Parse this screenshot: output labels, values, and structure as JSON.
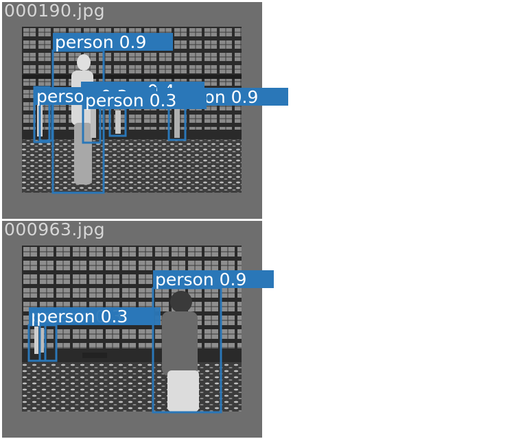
{
  "colors": {
    "box": "#2a77b8",
    "label_bg": "#2a77b8",
    "label_text": "#ffffff",
    "panel_bg": "#6e6e6e",
    "filename_text": "#d7d7d7"
  },
  "panels": [
    {
      "filename": "000190.jpg",
      "detections": [
        {
          "label": "person",
          "score": "0.9"
        },
        {
          "label": "person",
          "score": "0.4"
        },
        {
          "label": "person",
          "score": "0.3"
        },
        {
          "label": "person",
          "score": "0.9"
        },
        {
          "label": "person",
          "score": "0.3"
        }
      ]
    },
    {
      "filename": "000963.jpg",
      "detections": [
        {
          "label": "person",
          "score": "0.9"
        },
        {
          "label": "person",
          "score": "0.3"
        },
        {
          "label": "person",
          "score": "0.3"
        }
      ]
    }
  ]
}
